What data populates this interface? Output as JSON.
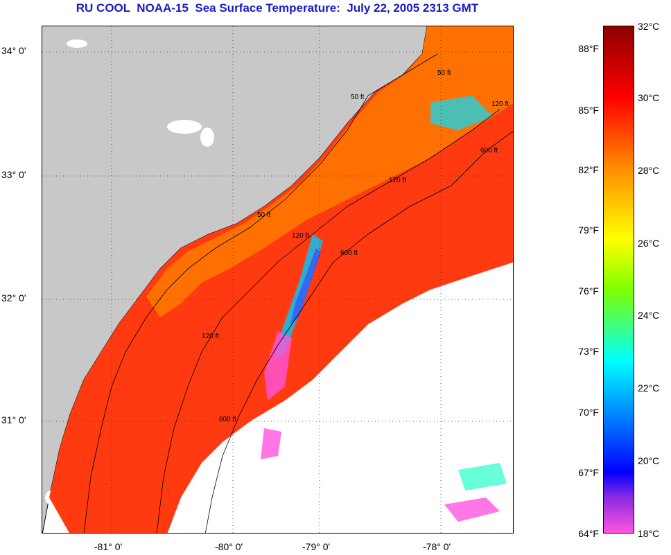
{
  "title": "RU COOL  NOAA-15  Sea Surface Temperature:  July 22, 2005 2313 GMT",
  "map": {
    "lat_labels": [
      "34° 0'",
      "33° 0'",
      "32° 0'",
      "31° 0'"
    ],
    "lon_labels": [
      "-81° 0'",
      "-80° 0'",
      "-79° 0'",
      "-78° 0'"
    ],
    "isobath_labels": [
      "50 ft",
      "50 ft",
      "120 ft",
      "120 ft",
      "600 ft",
      "600 ft",
      "120 ft",
      "50 ft",
      "120 ft",
      "600 ft"
    ],
    "colors": {
      "land": "#c8c8c8",
      "cloud": "#ffffff",
      "warm": "#ff3a10",
      "coastal": "#ff7a00"
    }
  },
  "colorbar": {
    "celsius_labels": [
      "32°C",
      "30°C",
      "28°C",
      "26°C",
      "24°C",
      "22°C",
      "20°C",
      "18°C"
    ],
    "fahrenheit_labels": [
      "88°F",
      "85°F",
      "82°F",
      "79°F",
      "76°F",
      "73°F",
      "70°F",
      "67°F",
      "64°F"
    ]
  }
}
